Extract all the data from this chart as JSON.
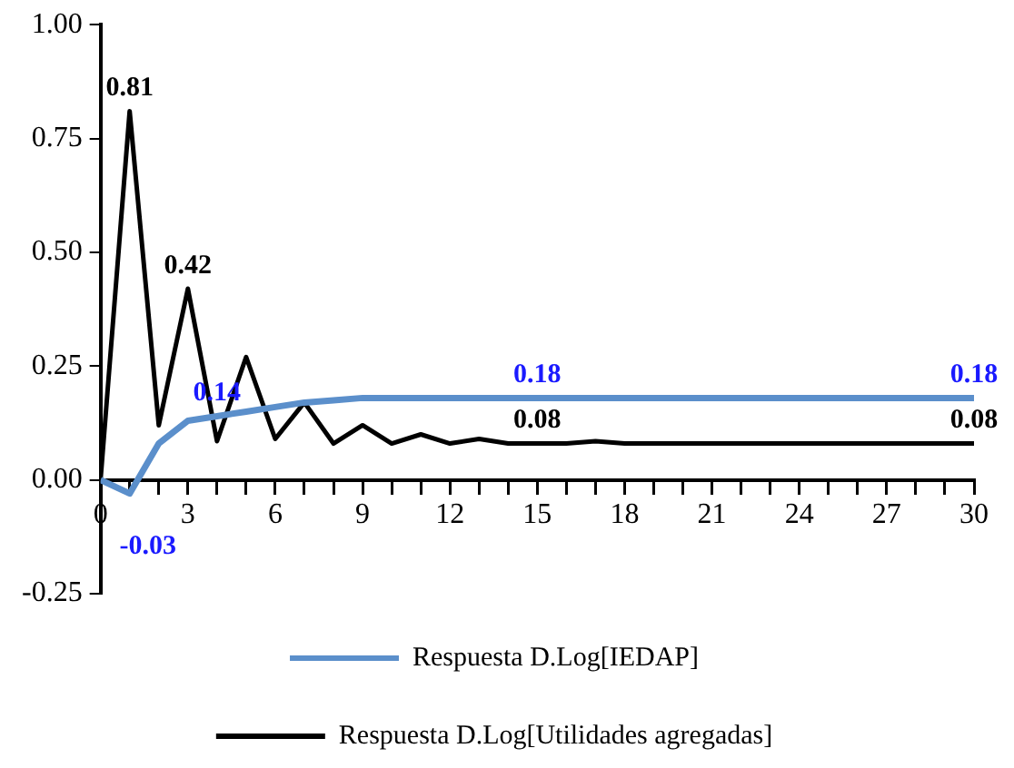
{
  "chart_data": {
    "type": "line",
    "x": [
      0,
      1,
      2,
      3,
      4,
      5,
      6,
      7,
      8,
      9,
      10,
      11,
      12,
      13,
      14,
      15,
      16,
      17,
      18,
      19,
      20,
      21,
      22,
      23,
      24,
      25,
      26,
      27,
      28,
      29,
      30
    ],
    "series": [
      {
        "name": "Respuesta D.Log[IEDAP]",
        "color": "#5b8fcb",
        "values": [
          0,
          -0.03,
          0.08,
          0.13,
          0.14,
          0.15,
          0.16,
          0.17,
          0.175,
          0.18,
          0.18,
          0.18,
          0.18,
          0.18,
          0.18,
          0.18,
          0.18,
          0.18,
          0.18,
          0.18,
          0.18,
          0.18,
          0.18,
          0.18,
          0.18,
          0.18,
          0.18,
          0.18,
          0.18,
          0.18,
          0.18
        ],
        "value_labels": [
          null,
          "-0.03",
          null,
          null,
          "0.14",
          null,
          null,
          null,
          null,
          null,
          null,
          null,
          null,
          null,
          null,
          "0.18",
          null,
          null,
          null,
          null,
          null,
          null,
          null,
          null,
          null,
          null,
          null,
          null,
          null,
          null,
          "0.18"
        ]
      },
      {
        "name": "Respuesta D.Log[Utilidades agregadas]",
        "color": "#000000",
        "values": [
          0,
          0.81,
          0.12,
          0.42,
          0.085,
          0.27,
          0.09,
          0.17,
          0.08,
          0.12,
          0.08,
          0.1,
          0.08,
          0.09,
          0.08,
          0.08,
          0.08,
          0.085,
          0.08,
          0.08,
          0.08,
          0.08,
          0.08,
          0.08,
          0.08,
          0.08,
          0.08,
          0.08,
          0.08,
          0.08,
          0.08
        ],
        "value_labels": [
          null,
          "0.81",
          null,
          "0.42",
          null,
          null,
          null,
          null,
          null,
          null,
          null,
          null,
          null,
          null,
          null,
          "0.08",
          null,
          null,
          null,
          null,
          null,
          null,
          null,
          null,
          null,
          null,
          null,
          null,
          null,
          null,
          "0.08"
        ]
      }
    ],
    "xlim": [
      0,
      30
    ],
    "xticks": [
      0,
      {
        "value": 1,
        "label": null
      },
      {
        "value": 2,
        "label": null
      },
      3,
      {
        "value": 4,
        "label": null
      },
      {
        "value": 5,
        "label": null
      },
      6,
      {
        "value": 7,
        "label": null
      },
      {
        "value": 8,
        "label": null
      },
      9,
      {
        "value": 10,
        "label": null
      },
      {
        "value": 11,
        "label": null
      },
      12,
      {
        "value": 13,
        "label": null
      },
      {
        "value": 14,
        "label": null
      },
      15,
      {
        "value": 16,
        "label": null
      },
      {
        "value": 17,
        "label": null
      },
      18,
      {
        "value": 19,
        "label": null
      },
      {
        "value": 20,
        "label": null
      },
      21,
      {
        "value": 22,
        "label": null
      },
      {
        "value": 23,
        "label": null
      },
      24,
      {
        "value": 25,
        "label": null
      },
      {
        "value": 26,
        "label": null
      },
      27,
      {
        "value": 28,
        "label": null
      },
      {
        "value": 29,
        "label": null
      },
      30
    ],
    "ylim": [
      -0.25,
      1
    ],
    "yticks": [
      {
        "value": -0.25,
        "label": "-0.25"
      },
      {
        "value": 0,
        "label": "0.00"
      },
      {
        "value": 0.25,
        "label": "0.25"
      },
      {
        "value": 0.5,
        "label": "0.50"
      },
      {
        "value": 0.75,
        "label": "0.75"
      },
      {
        "value": 1,
        "label": "1.00"
      }
    ],
    "grid": false,
    "legend": "bottom",
    "marker": "none",
    "line_style": "solid"
  }
}
